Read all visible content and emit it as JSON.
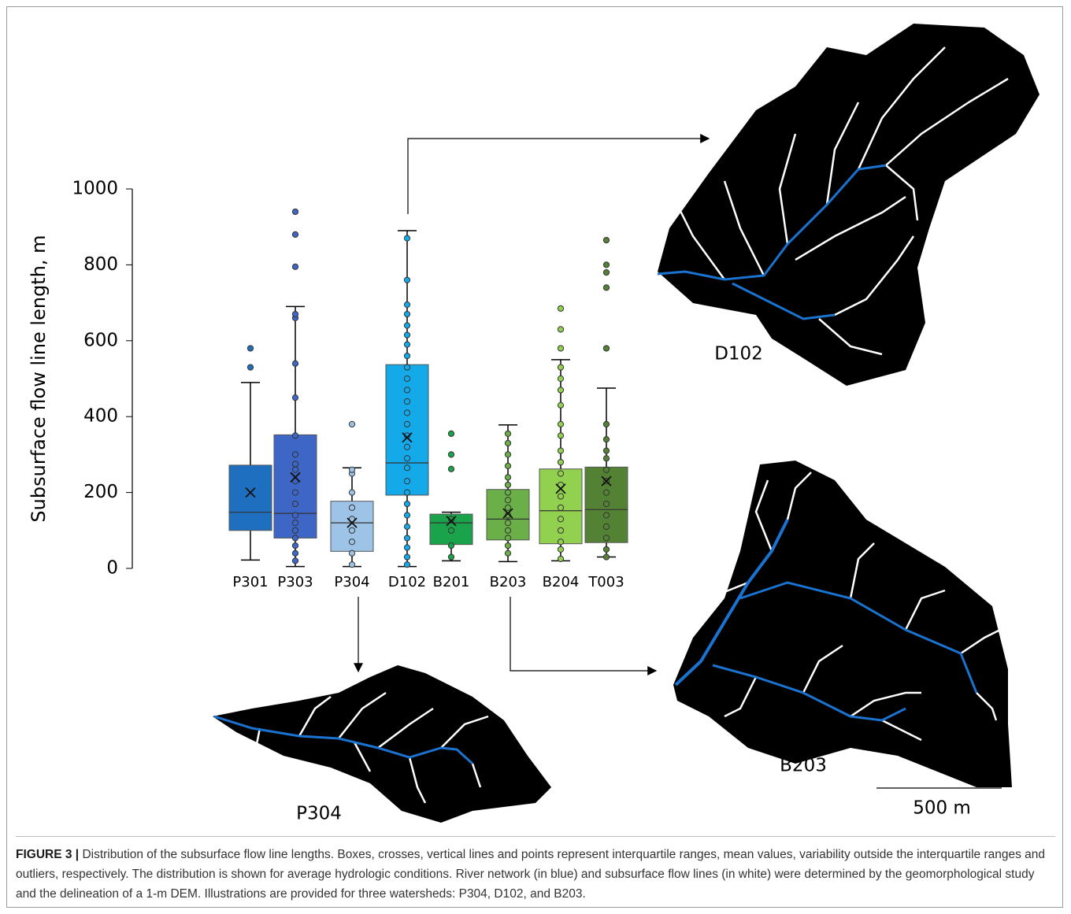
{
  "chart_data": {
    "type": "box",
    "y_label": "Subsurface flow line length, m",
    "categories": [
      "P301",
      "P303",
      "P304",
      "D102",
      "B201",
      "B203",
      "B204",
      "T003"
    ],
    "boxes": [
      {
        "color": "#1f6fc0",
        "whisker_low": 22,
        "q1": 100,
        "median": 148,
        "q3": 272,
        "whisker_high": 490,
        "mean": 200,
        "points": [
          530,
          580
        ]
      },
      {
        "color": "#3d66c6",
        "whisker_low": 5,
        "q1": 80,
        "median": 145,
        "q3": 352,
        "whisker_high": 690,
        "mean": 240,
        "points": [
          20,
          40,
          60,
          80,
          100,
          120,
          140,
          170,
          200,
          230,
          260,
          275,
          300,
          350,
          450,
          540,
          660,
          670,
          795,
          880,
          940
        ]
      },
      {
        "color": "#9dc3e6",
        "whisker_low": 5,
        "q1": 45,
        "median": 120,
        "q3": 177,
        "whisker_high": 265,
        "mean": 120,
        "points": [
          10,
          40,
          70,
          100,
          130,
          160,
          200,
          250,
          260,
          380
        ]
      },
      {
        "color": "#14a9e8",
        "whisker_low": 5,
        "q1": 193,
        "median": 278,
        "q3": 537,
        "whisker_high": 890,
        "mean": 345,
        "points": [
          10,
          30,
          55,
          80,
          110,
          140,
          170,
          200,
          230,
          265,
          290,
          320,
          350,
          380,
          410,
          440,
          470,
          500,
          530,
          560,
          590,
          615,
          640,
          670,
          695,
          760,
          870
        ]
      },
      {
        "color": "#1aa34a",
        "whisker_low": 20,
        "q1": 63,
        "median": 120,
        "q3": 143,
        "whisker_high": 148,
        "mean": 125,
        "points": [
          30,
          60,
          100,
          130,
          262,
          300,
          355
        ]
      },
      {
        "color": "#6aaf48",
        "whisker_low": 18,
        "q1": 75,
        "median": 130,
        "q3": 208,
        "whisker_high": 378,
        "mean": 145,
        "points": [
          40,
          60,
          80,
          100,
          120,
          140,
          160,
          180,
          200,
          220,
          240,
          270,
          300,
          330,
          355
        ]
      },
      {
        "color": "#92d050",
        "whisker_low": 20,
        "q1": 65,
        "median": 152,
        "q3": 262,
        "whisker_high": 550,
        "mean": 210,
        "points": [
          25,
          50,
          70,
          100,
          130,
          160,
          190,
          220,
          250,
          280,
          310,
          350,
          380,
          430,
          470,
          500,
          530,
          580,
          630,
          685
        ]
      },
      {
        "color": "#548235",
        "whisker_low": 30,
        "q1": 68,
        "median": 155,
        "q3": 267,
        "whisker_high": 475,
        "mean": 230,
        "points": [
          30,
          50,
          80,
          110,
          140,
          170,
          200,
          230,
          260,
          290,
          310,
          340,
          380,
          580,
          740,
          780,
          800,
          865
        ]
      }
    ],
    "ylim": [
      0,
      1000
    ],
    "yticks": [
      0,
      200,
      400,
      600,
      800,
      1000
    ]
  },
  "maps": [
    {
      "label": "D102"
    },
    {
      "label": "B203"
    },
    {
      "label": "P304"
    }
  ],
  "scale_bar": "500 m",
  "caption": {
    "label": "FIGURE 3 |",
    "text": "Distribution of the subsurface flow line lengths. Boxes, crosses, vertical lines and points represent interquartile ranges, mean values, variability outside the interquartile ranges and outliers, respectively. The distribution is shown for average hydrologic conditions. River network (in blue) and subsurface flow lines (in white) were determined by the geomorphological study and the delineation of a 1-m DEM. Illustrations are provided for three watersheds: P304, D102, and B203."
  }
}
